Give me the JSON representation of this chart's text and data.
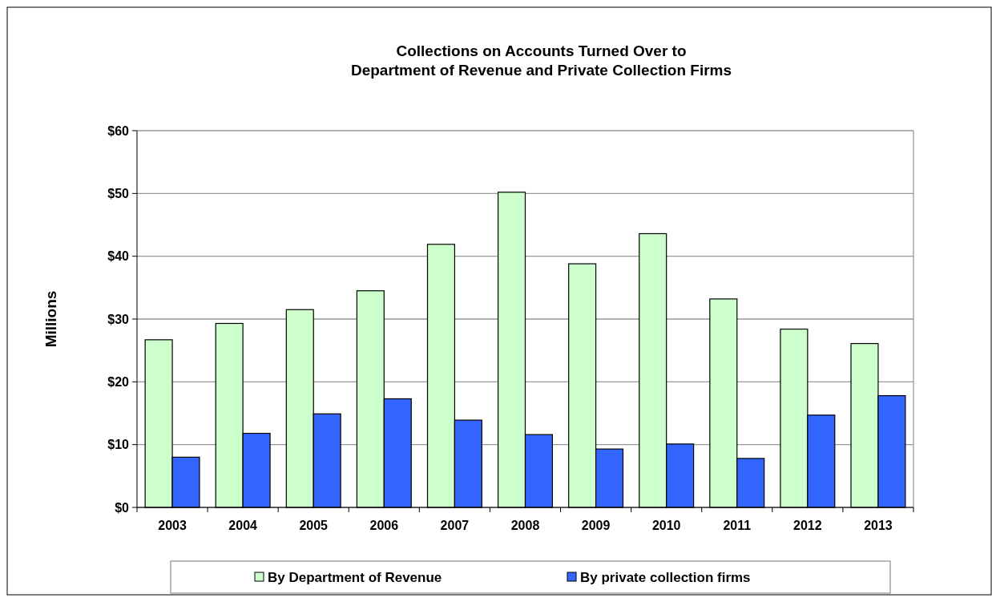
{
  "chart_data": {
    "type": "bar",
    "title": "Collections on Accounts Turned Over to\nDepartment of Revenue and Private Collection Firms",
    "ylabel": "Millions",
    "categories": [
      "2003",
      "2004",
      "2005",
      "2006",
      "2007",
      "2008",
      "2009",
      "2010",
      "2011",
      "2012",
      "2013"
    ],
    "series": [
      {
        "name": "By Department of Revenue",
        "color": "#ccffcc",
        "values": [
          26.7,
          29.3,
          31.5,
          34.5,
          41.9,
          50.2,
          38.8,
          43.6,
          33.2,
          28.4,
          26.1
        ]
      },
      {
        "name": "By private collection firms",
        "color": "#3366ff",
        "values": [
          8.0,
          11.8,
          14.9,
          17.3,
          13.9,
          11.6,
          9.3,
          10.1,
          7.8,
          14.7,
          17.8
        ]
      }
    ],
    "ylim": [
      0,
      60
    ],
    "yticks": [
      {
        "value": 0,
        "label": "$0"
      },
      {
        "value": 10,
        "label": "$10"
      },
      {
        "value": 20,
        "label": "$20"
      },
      {
        "value": 30,
        "label": "$30"
      },
      {
        "value": 40,
        "label": "$40"
      },
      {
        "value": 50,
        "label": "$50"
      },
      {
        "value": 60,
        "label": "$60"
      }
    ],
    "grid": "y",
    "legend": "bottom"
  }
}
